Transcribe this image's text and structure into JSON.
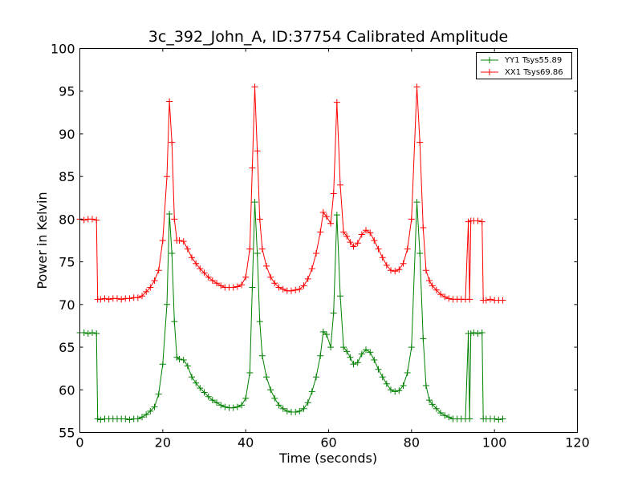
{
  "chart_data": {
    "type": "line",
    "title": "3c_392_John_A, ID:37754 Calibrated Amplitude",
    "xlabel": "Time (seconds)",
    "ylabel": "Power in Kelvin",
    "xlim": [
      0,
      120
    ],
    "ylim": [
      55,
      100
    ],
    "xticks": [
      "0",
      "20",
      "40",
      "60",
      "80",
      "100",
      "120"
    ],
    "yticks": [
      "55",
      "60",
      "65",
      "70",
      "75",
      "80",
      "85",
      "90",
      "95",
      "100"
    ],
    "grid": false,
    "legend_position": "top-right",
    "series": [
      {
        "name": "YY1 Tsys55.89",
        "color": "#008000",
        "marker": "+",
        "points": [
          [
            0,
            66.7
          ],
          [
            1,
            66.7
          ],
          [
            2,
            66.6
          ],
          [
            3,
            66.7
          ],
          [
            4,
            66.6
          ],
          [
            4.3,
            56.6
          ],
          [
            5,
            56.5
          ],
          [
            6,
            56.6
          ],
          [
            7,
            56.6
          ],
          [
            8,
            56.6
          ],
          [
            9,
            56.6
          ],
          [
            10,
            56.6
          ],
          [
            11,
            56.6
          ],
          [
            12,
            56.5
          ],
          [
            13,
            56.6
          ],
          [
            14,
            56.6
          ],
          [
            15,
            56.8
          ],
          [
            16,
            57.1
          ],
          [
            17,
            57.5
          ],
          [
            18,
            58.0
          ],
          [
            19,
            59.5
          ],
          [
            20,
            63.0
          ],
          [
            21,
            70.0
          ],
          [
            21.6,
            80.6
          ],
          [
            22.2,
            76.0
          ],
          [
            22.8,
            68.0
          ],
          [
            23.4,
            63.8
          ],
          [
            24,
            63.6
          ],
          [
            25,
            63.5
          ],
          [
            26,
            62.8
          ],
          [
            27,
            61.5
          ],
          [
            28,
            60.8
          ],
          [
            29,
            60.2
          ],
          [
            30,
            59.7
          ],
          [
            31,
            59.2
          ],
          [
            32,
            58.8
          ],
          [
            33,
            58.5
          ],
          [
            34,
            58.2
          ],
          [
            35,
            58.0
          ],
          [
            36,
            57.9
          ],
          [
            37,
            57.9
          ],
          [
            38,
            58.0
          ],
          [
            39,
            58.2
          ],
          [
            40,
            59.0
          ],
          [
            41,
            62.0
          ],
          [
            41.6,
            72.0
          ],
          [
            42.2,
            82.0
          ],
          [
            42.8,
            76.0
          ],
          [
            43.4,
            68.0
          ],
          [
            44,
            64.0
          ],
          [
            45,
            61.5
          ],
          [
            46,
            60.0
          ],
          [
            47,
            59.0
          ],
          [
            48,
            58.2
          ],
          [
            49,
            57.8
          ],
          [
            50,
            57.5
          ],
          [
            51,
            57.4
          ],
          [
            52,
            57.4
          ],
          [
            53,
            57.5
          ],
          [
            54,
            57.8
          ],
          [
            55,
            58.5
          ],
          [
            56,
            59.8
          ],
          [
            57,
            61.5
          ],
          [
            58,
            64.0
          ],
          [
            58.7,
            66.8
          ],
          [
            59.5,
            66.5
          ],
          [
            60.5,
            65.0
          ],
          [
            61.2,
            69.0
          ],
          [
            62.0,
            80.5
          ],
          [
            62.8,
            71.0
          ],
          [
            63.6,
            65.0
          ],
          [
            64.4,
            64.5
          ],
          [
            65.2,
            63.8
          ],
          [
            66,
            63.0
          ],
          [
            67,
            63.2
          ],
          [
            68,
            64.2
          ],
          [
            69,
            64.7
          ],
          [
            70,
            64.4
          ],
          [
            71,
            63.5
          ],
          [
            72,
            62.4
          ],
          [
            73,
            61.5
          ],
          [
            74,
            60.7
          ],
          [
            75,
            60.0
          ],
          [
            76,
            59.8
          ],
          [
            77,
            59.9
          ],
          [
            78,
            60.5
          ],
          [
            79,
            62.0
          ],
          [
            80,
            65.0
          ],
          [
            81.3,
            82.0
          ],
          [
            82,
            76.0
          ],
          [
            82.8,
            66.0
          ],
          [
            83.5,
            60.5
          ],
          [
            84.3,
            58.8
          ],
          [
            85,
            58.3
          ],
          [
            86,
            57.8
          ],
          [
            87,
            57.3
          ],
          [
            88,
            57.0
          ],
          [
            89,
            56.8
          ],
          [
            90,
            56.6
          ],
          [
            91,
            56.6
          ],
          [
            92,
            56.6
          ],
          [
            93,
            56.6
          ],
          [
            93.7,
            66.6
          ],
          [
            94,
            56.6
          ],
          [
            94.3,
            66.6
          ],
          [
            95,
            66.7
          ],
          [
            96,
            66.6
          ],
          [
            97,
            66.7
          ],
          [
            97.3,
            56.6
          ],
          [
            98,
            56.6
          ],
          [
            99,
            56.6
          ],
          [
            100,
            56.6
          ],
          [
            101,
            56.5
          ],
          [
            102,
            56.6
          ]
        ]
      },
      {
        "name": "XX1 Tsys69.86",
        "color": "#ff0000",
        "marker": "+",
        "points": [
          [
            0,
            80.0
          ],
          [
            1,
            79.9
          ],
          [
            2,
            80.0
          ],
          [
            3,
            80.0
          ],
          [
            4,
            79.9
          ],
          [
            4.3,
            70.6
          ],
          [
            5,
            70.6
          ],
          [
            6,
            70.7
          ],
          [
            7,
            70.6
          ],
          [
            8,
            70.7
          ],
          [
            9,
            70.7
          ],
          [
            10,
            70.6
          ],
          [
            11,
            70.7
          ],
          [
            12,
            70.7
          ],
          [
            13,
            70.8
          ],
          [
            14,
            70.8
          ],
          [
            15,
            71.0
          ],
          [
            16,
            71.5
          ],
          [
            17,
            72.0
          ],
          [
            18,
            72.8
          ],
          [
            19,
            74.0
          ],
          [
            20,
            77.5
          ],
          [
            21,
            85.0
          ],
          [
            21.6,
            93.8
          ],
          [
            22.2,
            89.0
          ],
          [
            22.8,
            80.0
          ],
          [
            23.4,
            77.5
          ],
          [
            24,
            77.5
          ],
          [
            25,
            77.4
          ],
          [
            26,
            76.5
          ],
          [
            27,
            75.5
          ],
          [
            28,
            74.8
          ],
          [
            29,
            74.2
          ],
          [
            30,
            73.7
          ],
          [
            31,
            73.2
          ],
          [
            32,
            72.8
          ],
          [
            33,
            72.5
          ],
          [
            34,
            72.2
          ],
          [
            35,
            72.0
          ],
          [
            36,
            72.0
          ],
          [
            37,
            72.0
          ],
          [
            38,
            72.1
          ],
          [
            39,
            72.3
          ],
          [
            40,
            73.2
          ],
          [
            41,
            76.5
          ],
          [
            41.6,
            86.0
          ],
          [
            42.2,
            95.5
          ],
          [
            42.8,
            88.0
          ],
          [
            43.4,
            80.0
          ],
          [
            44,
            76.5
          ],
          [
            45,
            74.5
          ],
          [
            46,
            73.2
          ],
          [
            47,
            72.5
          ],
          [
            48,
            72.0
          ],
          [
            49,
            71.8
          ],
          [
            50,
            71.6
          ],
          [
            51,
            71.6
          ],
          [
            52,
            71.7
          ],
          [
            53,
            71.8
          ],
          [
            54,
            72.2
          ],
          [
            55,
            73.0
          ],
          [
            56,
            74.2
          ],
          [
            57,
            76.0
          ],
          [
            58,
            78.5
          ],
          [
            58.7,
            80.8
          ],
          [
            59.5,
            80.3
          ],
          [
            60.5,
            79.5
          ],
          [
            61.2,
            83.0
          ],
          [
            62.0,
            93.7
          ],
          [
            62.8,
            84.0
          ],
          [
            63.6,
            78.5
          ],
          [
            64.4,
            78.0
          ],
          [
            65.2,
            77.3
          ],
          [
            66,
            76.8
          ],
          [
            67,
            77.2
          ],
          [
            68,
            78.2
          ],
          [
            69,
            78.7
          ],
          [
            70,
            78.4
          ],
          [
            71,
            77.5
          ],
          [
            72,
            76.5
          ],
          [
            73,
            75.5
          ],
          [
            74,
            74.6
          ],
          [
            75,
            74.0
          ],
          [
            76,
            73.9
          ],
          [
            77,
            74.1
          ],
          [
            78,
            74.8
          ],
          [
            79,
            76.5
          ],
          [
            80,
            80.0
          ],
          [
            81.3,
            95.5
          ],
          [
            82,
            89.0
          ],
          [
            82.8,
            79.0
          ],
          [
            83.5,
            74.0
          ],
          [
            84.3,
            72.8
          ],
          [
            85,
            72.2
          ],
          [
            86,
            71.7
          ],
          [
            87,
            71.2
          ],
          [
            88,
            70.9
          ],
          [
            89,
            70.7
          ],
          [
            90,
            70.6
          ],
          [
            91,
            70.6
          ],
          [
            92,
            70.6
          ],
          [
            93,
            70.6
          ],
          [
            93.7,
            79.7
          ],
          [
            94,
            70.6
          ],
          [
            94.3,
            79.8
          ],
          [
            95,
            79.8
          ],
          [
            96,
            79.8
          ],
          [
            97,
            79.7
          ],
          [
            97.3,
            70.5
          ],
          [
            98,
            70.5
          ],
          [
            99,
            70.6
          ],
          [
            100,
            70.5
          ],
          [
            101,
            70.5
          ],
          [
            102,
            70.5
          ]
        ]
      }
    ]
  }
}
